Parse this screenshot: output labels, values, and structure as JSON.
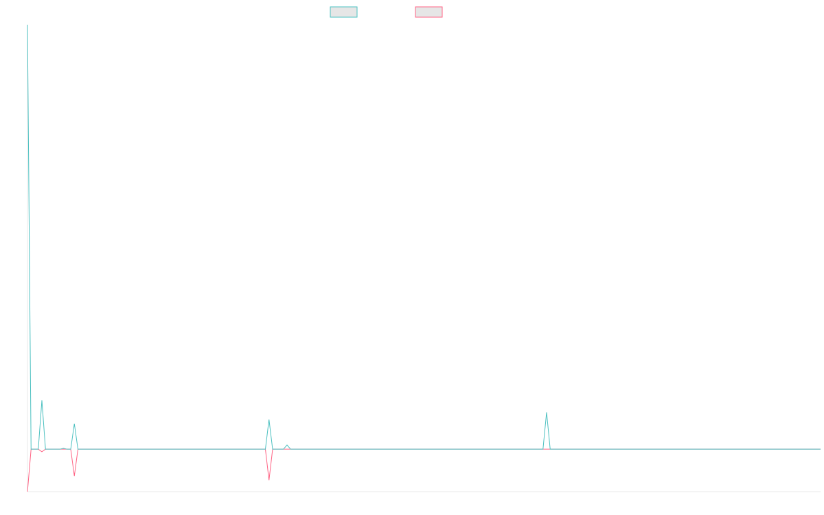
{
  "chart_data": {
    "type": "line",
    "x": [
      0,
      1,
      3,
      4,
      5,
      9,
      10,
      11,
      12,
      13,
      14,
      66,
      67,
      68,
      71,
      72,
      73,
      143,
      144,
      145,
      220
    ],
    "xlim": [
      0,
      220
    ],
    "ylim": [
      -10,
      100
    ],
    "series": [
      {
        "color": "#4bc0c0",
        "values": [
          100,
          0,
          0,
          11.5,
          0,
          0,
          0.2,
          0,
          0,
          6,
          0,
          0,
          7,
          0,
          0,
          1,
          0,
          0,
          8.7,
          0,
          0
        ]
      },
      {
        "color": "#ff6384",
        "values": [
          -10,
          0,
          0,
          -0.6,
          0,
          0,
          0,
          0,
          0,
          -6.3,
          0,
          0,
          -7.3,
          0,
          0,
          0,
          0,
          0,
          0,
          0,
          0
        ]
      }
    ]
  }
}
